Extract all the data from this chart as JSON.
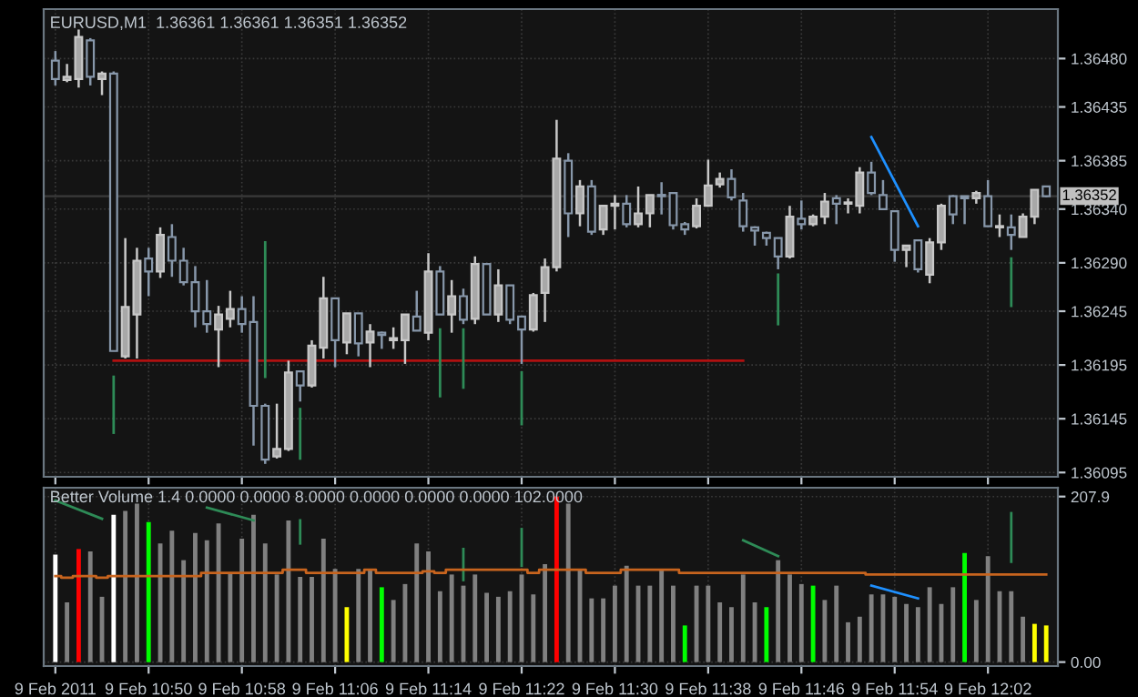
{
  "chart_data": [
    {
      "type": "candlestick",
      "title": "EURUSD,M1  1.36361 1.36361 1.36351 1.36352",
      "grid": true,
      "tick_labels": "y",
      "x": [
        "2011-02-09T10:42",
        "2011-02-09T10:43",
        "2011-02-09T10:44",
        "2011-02-09T10:45",
        "2011-02-09T10:46",
        "2011-02-09T10:47",
        "2011-02-09T10:48",
        "2011-02-09T10:49",
        "2011-02-09T10:50",
        "2011-02-09T10:51",
        "2011-02-09T10:52",
        "2011-02-09T10:53",
        "2011-02-09T10:54",
        "2011-02-09T10:55",
        "2011-02-09T10:56",
        "2011-02-09T10:57",
        "2011-02-09T10:58",
        "2011-02-09T10:59",
        "2011-02-09T11:00",
        "2011-02-09T11:01",
        "2011-02-09T11:02",
        "2011-02-09T11:03",
        "2011-02-09T11:04",
        "2011-02-09T11:05",
        "2011-02-09T11:06",
        "2011-02-09T11:07",
        "2011-02-09T11:08",
        "2011-02-09T11:09",
        "2011-02-09T11:10",
        "2011-02-09T11:11",
        "2011-02-09T11:12",
        "2011-02-09T11:13",
        "2011-02-09T11:14",
        "2011-02-09T11:15",
        "2011-02-09T11:16",
        "2011-02-09T11:17",
        "2011-02-09T11:18",
        "2011-02-09T11:19",
        "2011-02-09T11:20",
        "2011-02-09T11:21",
        "2011-02-09T11:22",
        "2011-02-09T11:23",
        "2011-02-09T11:24",
        "2011-02-09T11:25",
        "2011-02-09T11:26",
        "2011-02-09T11:27",
        "2011-02-09T11:28",
        "2011-02-09T11:29",
        "2011-02-09T11:30",
        "2011-02-09T11:31",
        "2011-02-09T11:32",
        "2011-02-09T11:33",
        "2011-02-09T11:34",
        "2011-02-09T11:35",
        "2011-02-09T11:36",
        "2011-02-09T11:37",
        "2011-02-09T11:38",
        "2011-02-09T11:39",
        "2011-02-09T11:40",
        "2011-02-09T11:41",
        "2011-02-09T11:42",
        "2011-02-09T11:43",
        "2011-02-09T11:44",
        "2011-02-09T11:45",
        "2011-02-09T11:46",
        "2011-02-09T11:47",
        "2011-02-09T11:48",
        "2011-02-09T11:49",
        "2011-02-09T11:50",
        "2011-02-09T11:51",
        "2011-02-09T11:52",
        "2011-02-09T11:53",
        "2011-02-09T11:54",
        "2011-02-09T11:55",
        "2011-02-09T11:56",
        "2011-02-09T11:57",
        "2011-02-09T11:58",
        "2011-02-09T11:59",
        "2011-02-09T12:00",
        "2011-02-09T12:01",
        "2011-02-09T12:02",
        "2011-02-09T12:03",
        "2011-02-09T12:04",
        "2011-02-09T12:05",
        "2011-02-09T12:06",
        "2011-02-09T12:07"
      ],
      "ohlc": [
        [
          1.36478,
          1.36487,
          1.36455,
          1.36461
        ],
        [
          1.3646,
          1.36475,
          1.36458,
          1.36463
        ],
        [
          1.36461,
          1.36507,
          1.36453,
          1.365
        ],
        [
          1.36497,
          1.36499,
          1.36455,
          1.36463
        ],
        [
          1.36461,
          1.36468,
          1.36446,
          1.36466
        ],
        [
          1.36466,
          1.36468,
          1.36208,
          1.36208
        ],
        [
          1.36203,
          1.36313,
          1.36201,
          1.36249
        ],
        [
          1.36242,
          1.36304,
          1.36201,
          1.36292
        ],
        [
          1.36294,
          1.36304,
          1.36259,
          1.36282
        ],
        [
          1.36282,
          1.36323,
          1.36276,
          1.36316
        ],
        [
          1.36314,
          1.36326,
          1.36277,
          1.36292
        ],
        [
          1.36292,
          1.36304,
          1.36269,
          1.36272
        ],
        [
          1.36272,
          1.36287,
          1.3623,
          1.36245
        ],
        [
          1.36245,
          1.36274,
          1.36225,
          1.36233
        ],
        [
          1.36228,
          1.3625,
          1.36193,
          1.36242
        ],
        [
          1.36238,
          1.36264,
          1.3623,
          1.36247
        ],
        [
          1.36247,
          1.36259,
          1.36225,
          1.36233
        ],
        [
          1.36235,
          1.36259,
          1.3612,
          1.36157
        ],
        [
          1.36157,
          1.36159,
          1.36103,
          1.36107
        ],
        [
          1.3611,
          1.36159,
          1.36108,
          1.36117
        ],
        [
          1.36117,
          1.36199,
          1.36115,
          1.36188
        ],
        [
          1.36189,
          1.36189,
          1.36161,
          1.36176
        ],
        [
          1.36176,
          1.36218,
          1.36174,
          1.36213
        ],
        [
          1.36211,
          1.36277,
          1.36201,
          1.36257
        ],
        [
          1.36257,
          1.36257,
          1.36193,
          1.36218
        ],
        [
          1.36216,
          1.36243,
          1.36205,
          1.36243
        ],
        [
          1.36243,
          1.36243,
          1.36203,
          1.36215
        ],
        [
          1.36216,
          1.36233,
          1.36193,
          1.36226
        ],
        [
          1.36225,
          1.36226,
          1.3621,
          1.36223
        ],
        [
          1.36218,
          1.3623,
          1.3621,
          1.3622
        ],
        [
          1.36218,
          1.36242,
          1.36196,
          1.36242
        ],
        [
          1.3624,
          1.36264,
          1.36227,
          1.36227
        ],
        [
          1.36225,
          1.36299,
          1.36218,
          1.36282
        ],
        [
          1.36282,
          1.36287,
          1.36242,
          1.36242
        ],
        [
          1.36242,
          1.36274,
          1.36225,
          1.36259
        ],
        [
          1.36259,
          1.36266,
          1.36233,
          1.36237
        ],
        [
          1.36238,
          1.36296,
          1.36233,
          1.36289
        ],
        [
          1.36289,
          1.36289,
          1.36242,
          1.36242
        ],
        [
          1.36242,
          1.36284,
          1.36235,
          1.36269
        ],
        [
          1.36269,
          1.36269,
          1.36233,
          1.36237
        ],
        [
          1.3624,
          1.3624,
          1.36196,
          1.36228
        ],
        [
          1.36228,
          1.36262,
          1.36226,
          1.3626
        ],
        [
          1.36262,
          1.36294,
          1.36235,
          1.36286
        ],
        [
          1.36286,
          1.36423,
          1.36282,
          1.36387
        ],
        [
          1.36385,
          1.36392,
          1.36314,
          1.36336
        ],
        [
          1.36336,
          1.36367,
          1.36324,
          1.36361
        ],
        [
          1.36361,
          1.36367,
          1.36316,
          1.36319
        ],
        [
          1.36321,
          1.36343,
          1.36316,
          1.36343
        ],
        [
          1.36343,
          1.36353,
          1.36321,
          1.36345
        ],
        [
          1.36345,
          1.36353,
          1.36323,
          1.36326
        ],
        [
          1.36326,
          1.36361,
          1.36323,
          1.36336
        ],
        [
          1.36336,
          1.36353,
          1.36323,
          1.36353
        ],
        [
          1.36353,
          1.36365,
          1.36335,
          1.36352
        ],
        [
          1.36355,
          1.36355,
          1.36321,
          1.36325
        ],
        [
          1.36326,
          1.36328,
          1.36316,
          1.36321
        ],
        [
          1.36324,
          1.3635,
          1.36322,
          1.36343
        ],
        [
          1.36343,
          1.36386,
          1.36343,
          1.36362
        ],
        [
          1.36363,
          1.36374,
          1.3636,
          1.36368
        ],
        [
          1.36368,
          1.36377,
          1.36348,
          1.36351
        ],
        [
          1.36348,
          1.36355,
          1.36319,
          1.36324
        ],
        [
          1.36323,
          1.36324,
          1.36306,
          1.3632
        ],
        [
          1.36318,
          1.36319,
          1.36306,
          1.36313
        ],
        [
          1.36313,
          1.36313,
          1.36284,
          1.36296
        ],
        [
          1.36296,
          1.36343,
          1.36294,
          1.36333
        ],
        [
          1.36331,
          1.36348,
          1.36321,
          1.36326
        ],
        [
          1.36326,
          1.36335,
          1.36324,
          1.36333
        ],
        [
          1.36333,
          1.36355,
          1.36326,
          1.36347
        ],
        [
          1.3635,
          1.36353,
          1.36326,
          1.36345
        ],
        [
          1.36345,
          1.3635,
          1.36336,
          1.36345
        ],
        [
          1.36343,
          1.36379,
          1.36336,
          1.36374
        ],
        [
          1.36374,
          1.36384,
          1.36353,
          1.36355
        ],
        [
          1.36353,
          1.36367,
          1.3634,
          1.3634
        ],
        [
          1.36338,
          1.36338,
          1.36291,
          1.36302
        ],
        [
          1.36302,
          1.36306,
          1.36286,
          1.36306
        ],
        [
          1.36311,
          1.36311,
          1.36281,
          1.36284
        ],
        [
          1.36279,
          1.36313,
          1.36271,
          1.36309
        ],
        [
          1.36309,
          1.36345,
          1.36302,
          1.36343
        ],
        [
          1.36352,
          1.36353,
          1.36326,
          1.36335
        ],
        [
          1.36352,
          1.36352,
          1.36326,
          1.3635
        ],
        [
          1.3635,
          1.36357,
          1.36345,
          1.36355
        ],
        [
          1.36352,
          1.36367,
          1.36324,
          1.36324
        ],
        [
          1.36323,
          1.36335,
          1.36314,
          1.36323
        ],
        [
          1.36323,
          1.36335,
          1.36302,
          1.36316
        ],
        [
          1.36314,
          1.36336,
          1.36314,
          1.36333
        ],
        [
          1.36333,
          1.36358,
          1.36326,
          1.36358
        ],
        [
          1.36361,
          1.36361,
          1.36351,
          1.36352
        ]
      ],
      "series": [
        {
          "type": "line",
          "color": "#b01010",
          "x": [
            "2011-02-09T10:47",
            "2011-02-09T11:41"
          ],
          "values": [
            1.36199,
            1.36199
          ]
        },
        {
          "type": "line",
          "color": "#2e8b57",
          "x": [
            "2011-02-09T10:47",
            "2011-02-09T10:47"
          ],
          "values": [
            1.36184,
            1.36132
          ]
        },
        {
          "type": "line",
          "color": "#2e8b57",
          "x": [
            "2011-02-09T11:00",
            "2011-02-09T11:00"
          ],
          "values": [
            1.36309,
            1.36184
          ]
        },
        {
          "type": "line",
          "color": "#2e8b57",
          "x": [
            "2011-02-09T11:03",
            "2011-02-09T11:03"
          ],
          "values": [
            1.36154,
            1.36108
          ]
        },
        {
          "type": "line",
          "color": "#2e8b57",
          "x": [
            "2011-02-09T11:15",
            "2011-02-09T11:15"
          ],
          "values": [
            1.36228,
            1.36166
          ]
        },
        {
          "type": "line",
          "color": "#2e8b57",
          "x": [
            "2011-02-09T11:17",
            "2011-02-09T11:17"
          ],
          "values": [
            1.36228,
            1.36174
          ]
        },
        {
          "type": "line",
          "color": "#2e8b57",
          "x": [
            "2011-02-09T11:22",
            "2011-02-09T11:22"
          ],
          "values": [
            1.36188,
            1.3614
          ]
        },
        {
          "type": "line",
          "color": "#2e8b57",
          "x": [
            "2011-02-09T11:44",
            "2011-02-09T11:44"
          ],
          "values": [
            1.36279,
            1.36233
          ]
        },
        {
          "type": "line",
          "color": "#2e8b57",
          "x": [
            "2011-02-09T12:04",
            "2011-02-09T12:04"
          ],
          "values": [
            1.36294,
            1.3625
          ]
        },
        {
          "type": "line",
          "color": "#1e90ff",
          "x": [
            "2011-02-09T11:52",
            "2011-02-09T11:56"
          ],
          "values": [
            1.36407,
            1.36324
          ]
        }
      ],
      "ref_lines": [
        {
          "axis": "y",
          "value": 1.36352,
          "label": "1.36352",
          "color": "#3a3a3a"
        }
      ],
      "xlim": [
        "2011-02-09T10:41",
        "2011-02-09T12:08"
      ],
      "xticks": [
        {
          "value": "2011-02-09T10:42",
          "label": null
        },
        {
          "value": "2011-02-09T10:50",
          "label": null
        },
        {
          "value": "2011-02-09T10:58",
          "label": null
        },
        {
          "value": "2011-02-09T11:06",
          "label": null
        },
        {
          "value": "2011-02-09T11:14",
          "label": null
        },
        {
          "value": "2011-02-09T11:22",
          "label": null
        },
        {
          "value": "2011-02-09T11:30",
          "label": null
        },
        {
          "value": "2011-02-09T11:38",
          "label": null
        },
        {
          "value": "2011-02-09T11:46",
          "label": null
        },
        {
          "value": "2011-02-09T11:54",
          "label": null
        },
        {
          "value": "2011-02-09T12:02",
          "label": null
        }
      ],
      "ylim": [
        1.36091,
        1.36526
      ],
      "yticks": [
        1.36095,
        1.36145,
        1.36195,
        1.36245,
        {
          "value": 1.3629,
          "label": "1.36290"
        },
        {
          "value": 1.3634,
          "label": "1.36340"
        },
        1.36385,
        1.36435,
        {
          "value": 1.3648,
          "label": "1.36480"
        }
      ]
    },
    {
      "type": "bar",
      "title": "Better Volume 1.4 0.0000 0.0000 8.0000 0.0000 0.0000 0.0000 102.0000",
      "grid": true,
      "x": [
        "2011-02-09T10:42",
        "2011-02-09T10:43",
        "2011-02-09T10:44",
        "2011-02-09T10:45",
        "2011-02-09T10:46",
        "2011-02-09T10:47",
        "2011-02-09T10:48",
        "2011-02-09T10:49",
        "2011-02-09T10:50",
        "2011-02-09T10:51",
        "2011-02-09T10:52",
        "2011-02-09T10:53",
        "2011-02-09T10:54",
        "2011-02-09T10:55",
        "2011-02-09T10:56",
        "2011-02-09T10:57",
        "2011-02-09T10:58",
        "2011-02-09T10:59",
        "2011-02-09T11:00",
        "2011-02-09T11:01",
        "2011-02-09T11:02",
        "2011-02-09T11:03",
        "2011-02-09T11:04",
        "2011-02-09T11:05",
        "2011-02-09T11:06",
        "2011-02-09T11:07",
        "2011-02-09T11:08",
        "2011-02-09T11:09",
        "2011-02-09T11:10",
        "2011-02-09T11:11",
        "2011-02-09T11:12",
        "2011-02-09T11:13",
        "2011-02-09T11:14",
        "2011-02-09T11:15",
        "2011-02-09T11:16",
        "2011-02-09T11:17",
        "2011-02-09T11:18",
        "2011-02-09T11:19",
        "2011-02-09T11:20",
        "2011-02-09T11:21",
        "2011-02-09T11:22",
        "2011-02-09T11:23",
        "2011-02-09T11:24",
        "2011-02-09T11:25",
        "2011-02-09T11:26",
        "2011-02-09T11:27",
        "2011-02-09T11:28",
        "2011-02-09T11:29",
        "2011-02-09T11:30",
        "2011-02-09T11:31",
        "2011-02-09T11:32",
        "2011-02-09T11:33",
        "2011-02-09T11:34",
        "2011-02-09T11:35",
        "2011-02-09T11:36",
        "2011-02-09T11:37",
        "2011-02-09T11:38",
        "2011-02-09T11:39",
        "2011-02-09T11:40",
        "2011-02-09T11:41",
        "2011-02-09T11:42",
        "2011-02-09T11:43",
        "2011-02-09T11:44",
        "2011-02-09T11:45",
        "2011-02-09T11:46",
        "2011-02-09T11:47",
        "2011-02-09T11:48",
        "2011-02-09T11:49",
        "2011-02-09T11:50",
        "2011-02-09T11:51",
        "2011-02-09T11:52",
        "2011-02-09T11:53",
        "2011-02-09T11:54",
        "2011-02-09T11:55",
        "2011-02-09T11:56",
        "2011-02-09T11:57",
        "2011-02-09T11:58",
        "2011-02-09T11:59",
        "2011-02-09T12:00",
        "2011-02-09T12:01",
        "2011-02-09T12:02",
        "2011-02-09T12:03",
        "2011-02-09T12:04",
        "2011-02-09T12:05",
        "2011-02-09T12:06",
        "2011-02-09T12:07"
      ],
      "series": [
        {
          "type": "bar",
          "values": [
            135,
            75,
            142,
            139,
            82,
            185,
            190,
            199,
            176,
            149,
            165,
            128,
            162,
            153,
            174,
            112,
            155,
            185,
            149,
            110,
            178,
            107,
            107,
            155,
            117,
            69,
            117,
            117,
            94,
            78,
            98,
            149,
            139,
            89,
            110,
            96,
            110,
            87,
            82,
            89,
            110,
            85,
            123,
            207.9,
            199,
            117,
            80,
            80,
            96,
            121,
            96,
            96,
            117,
            96,
            46,
            96,
            96,
            75,
            69,
            110,
            75,
            69,
            128,
            110,
            98,
            96,
            78,
            96,
            50,
            57,
            85,
            85,
            82,
            73,
            69,
            94,
            73,
            94,
            137,
            78,
            133,
            89,
            89,
            57,
            48,
            46
          ],
          "colors": [
            "#ffffff",
            "#808080",
            "#ff0000",
            "#808080",
            "#808080",
            "#ffffff",
            "#808080",
            "#808080",
            "#00ff00",
            "#808080",
            "#808080",
            "#808080",
            "#808080",
            "#808080",
            "#808080",
            "#808080",
            "#808080",
            "#808080",
            "#808080",
            "#808080",
            "#808080",
            "#808080",
            "#808080",
            "#808080",
            "#808080",
            "#ffff00",
            "#808080",
            "#808080",
            "#00ff00",
            "#808080",
            "#808080",
            "#808080",
            "#808080",
            "#808080",
            "#808080",
            "#808080",
            "#808080",
            "#808080",
            "#808080",
            "#808080",
            "#808080",
            "#808080",
            "#808080",
            "#ff0000",
            "#808080",
            "#808080",
            "#808080",
            "#808080",
            "#808080",
            "#808080",
            "#808080",
            "#808080",
            "#808080",
            "#808080",
            "#00ff00",
            "#808080",
            "#808080",
            "#808080",
            "#808080",
            "#808080",
            "#808080",
            "#00ff00",
            "#808080",
            "#808080",
            "#808080",
            "#00ff00",
            "#808080",
            "#808080",
            "#808080",
            "#808080",
            "#808080",
            "#808080",
            "#808080",
            "#808080",
            "#808080",
            "#808080",
            "#808080",
            "#808080",
            "#00ff00",
            "#808080",
            "#808080",
            "#808080",
            "#808080",
            "#808080",
            "#ffff00",
            "#ffff00"
          ]
        },
        {
          "type": "step",
          "color": "#c8641e",
          "values": [
            108,
            106,
            108,
            108,
            106,
            108,
            108,
            108,
            108,
            108,
            108,
            108,
            108,
            112,
            112,
            112,
            112,
            112,
            112,
            112,
            116,
            116,
            112,
            112,
            112,
            112,
            112,
            116,
            112,
            112,
            112,
            112,
            114,
            112,
            116,
            116,
            116,
            116,
            116,
            116,
            116,
            112,
            116,
            116,
            116,
            116,
            112,
            112,
            112,
            116,
            116,
            116,
            116,
            116,
            112,
            112,
            112,
            112,
            112,
            112,
            112,
            112,
            112,
            112,
            112,
            112,
            112,
            112,
            112,
            112,
            110,
            110,
            110,
            110,
            110,
            110,
            110,
            110,
            110,
            110,
            110,
            110,
            110,
            110,
            110,
            110
          ]
        },
        {
          "type": "line",
          "color": "#2e8b57",
          "x": [
            "2011-02-09T10:42",
            "2011-02-09T10:46"
          ],
          "values": [
            203,
            180
          ]
        },
        {
          "type": "line",
          "color": "#2e8b57",
          "x": [
            "2011-02-09T10:55",
            "2011-02-09T10:59"
          ],
          "values": [
            194,
            178
          ]
        },
        {
          "type": "line",
          "color": "#2e8b57",
          "x": [
            "2011-02-09T11:03",
            "2011-02-09T11:03"
          ],
          "values": [
            178,
            149
          ]
        },
        {
          "type": "line",
          "color": "#2e8b57",
          "x": [
            "2011-02-09T11:17",
            "2011-02-09T11:17"
          ],
          "values": [
            142,
            103
          ]
        },
        {
          "type": "line",
          "color": "#2e8b57",
          "x": [
            "2011-02-09T11:22",
            "2011-02-09T11:22"
          ],
          "values": [
            167,
            121
          ]
        },
        {
          "type": "line",
          "color": "#2e8b57",
          "x": [
            "2011-02-09T11:41",
            "2011-02-09T11:44"
          ],
          "values": [
            153,
            133
          ]
        },
        {
          "type": "line",
          "color": "#2e8b57",
          "x": [
            "2011-02-09T12:04",
            "2011-02-09T12:04"
          ],
          "values": [
            187,
            126
          ]
        },
        {
          "type": "line",
          "color": "#1e90ff",
          "x": [
            "2011-02-09T11:52",
            "2011-02-09T11:56"
          ],
          "values": [
            96,
            80
          ]
        }
      ],
      "xlim": [
        "2011-02-09T10:41",
        "2011-02-09T12:08"
      ],
      "xticks": [
        {
          "value": "2011-02-09T10:42",
          "label": "9 Feb 2011"
        },
        {
          "value": "2011-02-09T10:50",
          "label": "9 Feb 10:50"
        },
        {
          "value": "2011-02-09T10:58",
          "label": "9 Feb 10:58"
        },
        {
          "value": "2011-02-09T11:06",
          "label": "9 Feb 11:06"
        },
        {
          "value": "2011-02-09T11:14",
          "label": "9 Feb 11:14"
        },
        {
          "value": "2011-02-09T11:22",
          "label": "9 Feb 11:22"
        },
        {
          "value": "2011-02-09T11:30",
          "label": "9 Feb 11:30"
        },
        {
          "value": "2011-02-09T11:38",
          "label": "9 Feb 11:38"
        },
        {
          "value": "2011-02-09T11:46",
          "label": "9 Feb 11:46"
        },
        {
          "value": "2011-02-09T11:54",
          "label": "9 Feb 11:54"
        },
        {
          "value": "2011-02-09T12:02",
          "label": "9 Feb 12:02"
        }
      ],
      "ylim": [
        -5,
        219
      ],
      "yticks": [
        {
          "value": 0,
          "label": "0.00"
        },
        207.9
      ]
    }
  ]
}
